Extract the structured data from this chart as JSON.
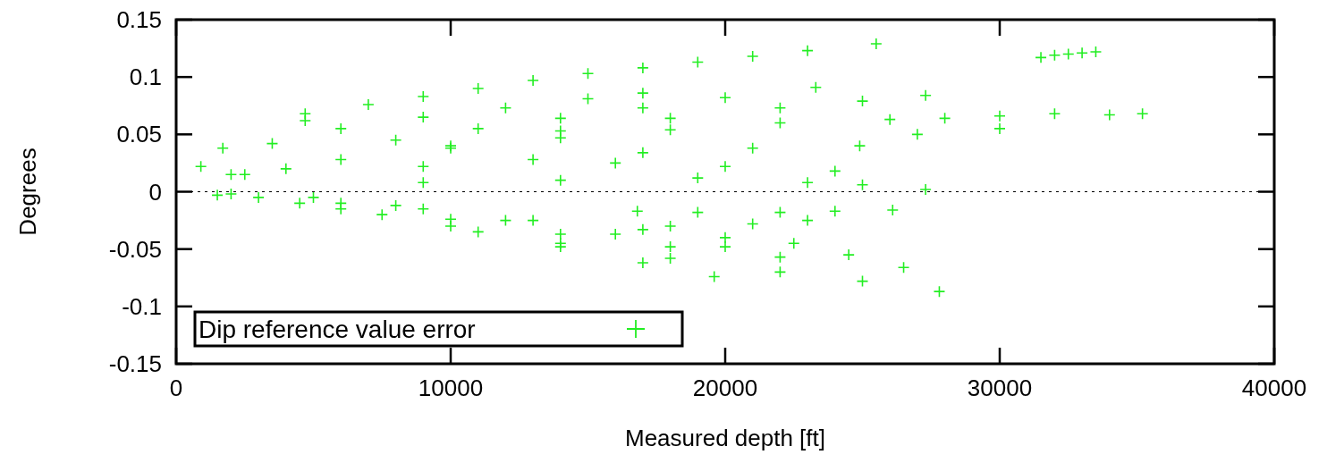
{
  "chart_data": {
    "type": "scatter",
    "xlabel": "Measured depth [ft]",
    "ylabel": "Degrees",
    "xlim": [
      0,
      40000
    ],
    "xticks": [
      0,
      10000,
      20000,
      30000,
      40000
    ],
    "ylim": [
      -0.15,
      0.15
    ],
    "yticks": [
      -0.15,
      -0.1,
      -0.05,
      0,
      0.05,
      0.1,
      0.15
    ],
    "grid": false,
    "legend": "bottom left",
    "marker": "cross",
    "ref_lines": [
      {
        "axis": "y",
        "value": 0,
        "line_style": "dotted",
        "color": "#000000"
      }
    ],
    "series": [
      {
        "name": "Dip reference value error",
        "color": "#22ee22",
        "x": [
          900,
          1500,
          1700,
          2500,
          3000,
          3500,
          4000,
          4500,
          4700,
          4700,
          7000,
          9000,
          11000,
          13000,
          15000,
          17000,
          19000,
          21000,
          23000,
          25500,
          6000,
          9000,
          12000,
          15000,
          17000,
          8000,
          11000,
          14000,
          17000,
          20000,
          23300,
          10000,
          14000,
          18000,
          22000,
          25000,
          27300,
          2000,
          6000,
          10000,
          14000,
          18000,
          22000,
          26000,
          28000,
          30000,
          32000,
          34000,
          35200,
          27000,
          30000,
          31500,
          32000,
          32500,
          33000,
          33500,
          9000,
          13000,
          17000,
          21000,
          24900,
          16000,
          20000,
          24000,
          9000,
          14000,
          19000,
          23000,
          25000,
          27300,
          16800,
          19000,
          22000,
          24000,
          26100,
          18000,
          21000,
          23000,
          5000,
          9000,
          13000,
          17000,
          20000,
          22500,
          8000,
          12000,
          16000,
          20000,
          24500,
          6000,
          10000,
          14000,
          18000,
          22000,
          26500,
          2000,
          6000,
          10000,
          14000,
          18000,
          22000,
          25000,
          27800,
          7500,
          11000,
          14000,
          17000,
          19600
        ],
        "values": [
          0.022,
          -0.003,
          0.038,
          0.015,
          -0.005,
          0.042,
          0.02,
          -0.01,
          0.062,
          0.068,
          0.076,
          0.083,
          0.09,
          0.097,
          0.103,
          0.108,
          0.113,
          0.118,
          0.123,
          0.129,
          0.055,
          0.065,
          0.073,
          0.081,
          0.086,
          0.045,
          0.055,
          0.064,
          0.073,
          0.082,
          0.091,
          0.04,
          0.053,
          0.064,
          0.073,
          0.079,
          0.084,
          0.015,
          0.028,
          0.038,
          0.047,
          0.054,
          0.06,
          0.063,
          0.064,
          0.066,
          0.068,
          0.067,
          0.068,
          0.05,
          0.055,
          0.117,
          0.119,
          0.12,
          0.121,
          0.122,
          0.022,
          0.028,
          0.034,
          0.038,
          0.04,
          0.025,
          0.022,
          0.018,
          0.008,
          0.01,
          0.012,
          0.008,
          0.006,
          0.002,
          -0.017,
          -0.018,
          -0.018,
          -0.017,
          -0.016,
          -0.03,
          -0.028,
          -0.025,
          -0.005,
          -0.015,
          -0.025,
          -0.033,
          -0.04,
          -0.045,
          -0.012,
          -0.025,
          -0.037,
          -0.048,
          -0.055,
          -0.01,
          -0.024,
          -0.037,
          -0.048,
          -0.057,
          -0.066,
          -0.002,
          -0.015,
          -0.03,
          -0.045,
          -0.058,
          -0.07,
          -0.078,
          -0.087,
          -0.02,
          -0.035,
          -0.048,
          -0.062,
          -0.074
        ]
      }
    ]
  }
}
